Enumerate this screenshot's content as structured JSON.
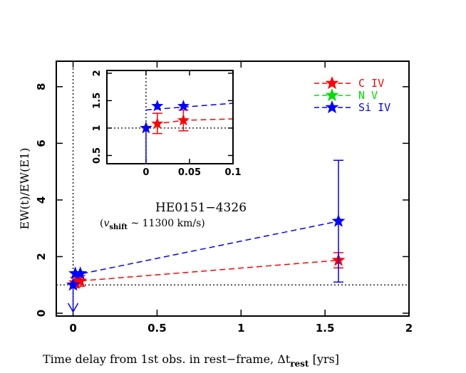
{
  "chart_data": {
    "type": "scatter",
    "title": "",
    "xlabel_prefix": "Time delay from 1st obs. in rest−frame, ",
    "xlabel_symbol": "Δt",
    "xlabel_sub": "rest",
    "xlabel_unit": " [yrs]",
    "ylabel": "EW(t)/EW(E1)",
    "xlim": [
      -0.1,
      2.0
    ],
    "ylim": [
      -0.1,
      8.9
    ],
    "x_ticks": [
      0,
      0.5,
      1,
      1.5,
      2
    ],
    "x_tick_labels": [
      "0",
      "0.5",
      "1",
      "1.5",
      "2"
    ],
    "y_ticks": [
      0,
      2,
      4,
      6,
      8
    ],
    "y_tick_labels": [
      "0",
      "2",
      "4",
      "6",
      "8"
    ],
    "reference_lines": {
      "y": 1,
      "x": 0
    },
    "annotation": {
      "object": "HE0151−4326",
      "velocity_prefix": "(",
      "velocity_symbol": "v",
      "velocity_sub": "shift",
      "velocity_suffix": " ~ 11300 km/s)"
    },
    "legend_position": "top-right",
    "series": [
      {
        "name": "C IV",
        "color": "#ff0000",
        "points": [
          {
            "x": 0.0,
            "y": 1.0,
            "lo": 1.0,
            "hi": 1.0
          },
          {
            "x": 0.013,
            "y": 1.08,
            "lo": 0.9,
            "hi": 1.27
          },
          {
            "x": 0.043,
            "y": 1.14,
            "lo": 0.95,
            "hi": 1.33
          },
          {
            "x": 1.58,
            "y": 1.87,
            "lo": 1.6,
            "hi": 2.14
          }
        ]
      },
      {
        "name": "N V",
        "color": "#00dd00",
        "points": []
      },
      {
        "name": "Si IV",
        "color": "#0000ff",
        "points": [
          {
            "x": 0.0,
            "y": 1.0,
            "lo": 0.05,
            "hi": 1.0,
            "upper_limit": true
          },
          {
            "x": 0.013,
            "y": 1.4,
            "lo": 1.4,
            "hi": 1.4
          },
          {
            "x": 0.043,
            "y": 1.4,
            "lo": 1.4,
            "hi": 1.4
          },
          {
            "x": 1.58,
            "y": 3.25,
            "lo": 1.1,
            "hi": 5.4
          }
        ],
        "trend": {
          "x0": 0.0,
          "y0": 1.33,
          "x1": 1.58,
          "y1": 3.25
        }
      }
    ],
    "inset": {
      "xlim": [
        -0.045,
        0.1
      ],
      "ylim": [
        0.35,
        2.05
      ],
      "x_ticks": [
        0,
        0.05,
        0.1
      ],
      "x_tick_labels": [
        "0",
        "0.05",
        "0.1"
      ],
      "y_ticks": [
        0.5,
        1,
        1.5,
        2
      ],
      "y_tick_labels": [
        "0.5",
        "1",
        "1.5",
        "2"
      ]
    }
  }
}
